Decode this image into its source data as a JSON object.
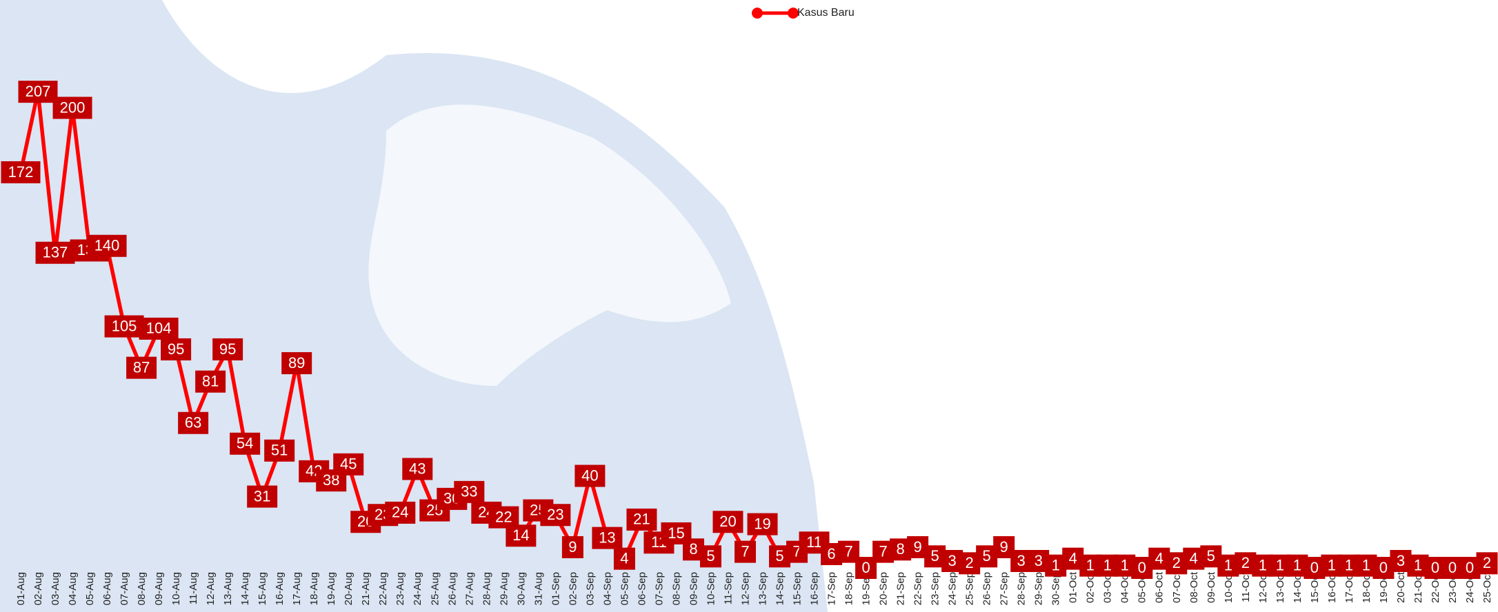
{
  "chart_data": {
    "type": "line",
    "categories": [
      "01-Aug",
      "02-Aug",
      "03-Aug",
      "04-Aug",
      "05-Aug",
      "06-Aug",
      "07-Aug",
      "08-Aug",
      "09-Aug",
      "10-Aug",
      "11-Aug",
      "12-Aug",
      "13-Aug",
      "14-Aug",
      "15-Aug",
      "16-Aug",
      "17-Aug",
      "18-Aug",
      "19-Aug",
      "20-Aug",
      "21-Aug",
      "22-Aug",
      "23-Aug",
      "24-Aug",
      "25-Aug",
      "26-Aug",
      "27-Aug",
      "28-Aug",
      "29-Aug",
      "30-Aug",
      "31-Aug",
      "01-Sep",
      "02-Sep",
      "03-Sep",
      "04-Sep",
      "05-Sep",
      "06-Sep",
      "07-Sep",
      "08-Sep",
      "09-Sep",
      "10-Sep",
      "11-Sep",
      "12-Sep",
      "13-Sep",
      "14-Sep",
      "15-Sep",
      "16-Sep",
      "17-Sep",
      "18-Sep",
      "19-Sep",
      "20-Sep",
      "21-Sep",
      "22-Sep",
      "23-Sep",
      "24-Sep",
      "25-Sep",
      "26-Sep",
      "27-Sep",
      "28-Sep",
      "29-Sep",
      "30-Sep",
      "01-Oct",
      "02-Oct",
      "03-Oct",
      "04-Oct",
      "05-Oct",
      "06-Oct",
      "07-Oct",
      "08-Oct",
      "09-Oct",
      "10-Oct",
      "11-Oct",
      "12-Oct",
      "13-Oct",
      "14-Oct",
      "15-Oct",
      "16-Oct",
      "17-Oct",
      "18-Oct",
      "19-Oct",
      "20-Oct",
      "21-Oct",
      "22-Oct",
      "23-Oct",
      "24-Oct",
      "25-Oct"
    ],
    "series": [
      {
        "name": "Kasus Baru",
        "color": "#ff0000",
        "label_color": "#c00000",
        "values": [
          172,
          207,
          137,
          200,
          138,
          140,
          105,
          87,
          104,
          95,
          63,
          81,
          95,
          54,
          31,
          51,
          89,
          42,
          38,
          45,
          20,
          23,
          24,
          43,
          25,
          30,
          33,
          24,
          22,
          14,
          25,
          23,
          9,
          40,
          13,
          4,
          21,
          11,
          15,
          8,
          5,
          20,
          7,
          19,
          5,
          7,
          11,
          6,
          7,
          0,
          7,
          8,
          9,
          5,
          3,
          2,
          5,
          9,
          3,
          3,
          1,
          4,
          1,
          1,
          1,
          0,
          4,
          2,
          4,
          5,
          1,
          2,
          1,
          1,
          1,
          0,
          1,
          1,
          1,
          0,
          3,
          1,
          0,
          0,
          0,
          2
        ]
      }
    ],
    "ylim": [
      0,
      240
    ],
    "legend": "top"
  }
}
